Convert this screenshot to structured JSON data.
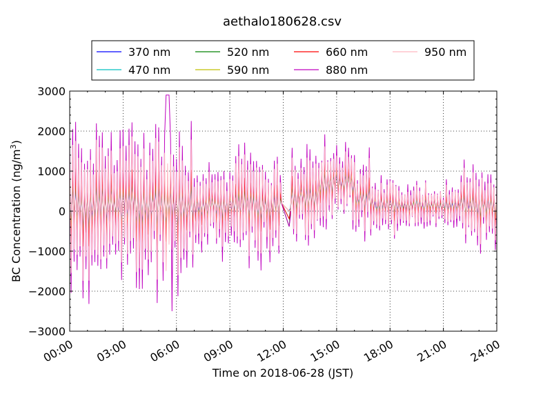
{
  "chart_data": {
    "type": "line",
    "title": "aethalo180628.csv",
    "xlabel": "Time on 2018-06-28 (JST)",
    "ylabel": "BC Concentration (ng/m³)",
    "ylabel_base": "BC Concentration (ng/m",
    "ylabel_sup": "3",
    "ylabel_end": ")",
    "xlim": [
      0,
      24
    ],
    "ylim": [
      -3000,
      3000
    ],
    "x_unit": "hours since 00:00 JST",
    "x_ticks": [
      0,
      3,
      6,
      9,
      12,
      15,
      18,
      21,
      24
    ],
    "x_tick_labels": [
      "00:00",
      "03:00",
      "06:00",
      "09:00",
      "12:00",
      "15:00",
      "18:00",
      "21:00",
      "24:00"
    ],
    "y_ticks": [
      -3000,
      -2000,
      -1000,
      0,
      1000,
      2000,
      3000
    ],
    "y_tick_labels": [
      "−3000",
      "−2000",
      "−1000",
      "0",
      "1000",
      "2000",
      "3000"
    ],
    "grid": true,
    "legend_position": "top, above plot",
    "series": [
      {
        "name": "370 nm",
        "color": "#0000ff"
      },
      {
        "name": "470 nm",
        "color": "#00bfbf"
      },
      {
        "name": "520 nm",
        "color": "#008000"
      },
      {
        "name": "590 nm",
        "color": "#bfbf00"
      },
      {
        "name": "660 nm",
        "color": "#ff0000"
      },
      {
        "name": "880 nm",
        "color": "#bf00bf"
      },
      {
        "name": "950 nm",
        "color": "#ffb6c1"
      }
    ],
    "notes": "Time series at 5-minute resolution; values oscillate strongly around 0. 880 nm shows largest swings (max ~2900 near 05:30, min ~-2500 near 05:45). Data gap/straight segment around 12:00-12:30."
  }
}
